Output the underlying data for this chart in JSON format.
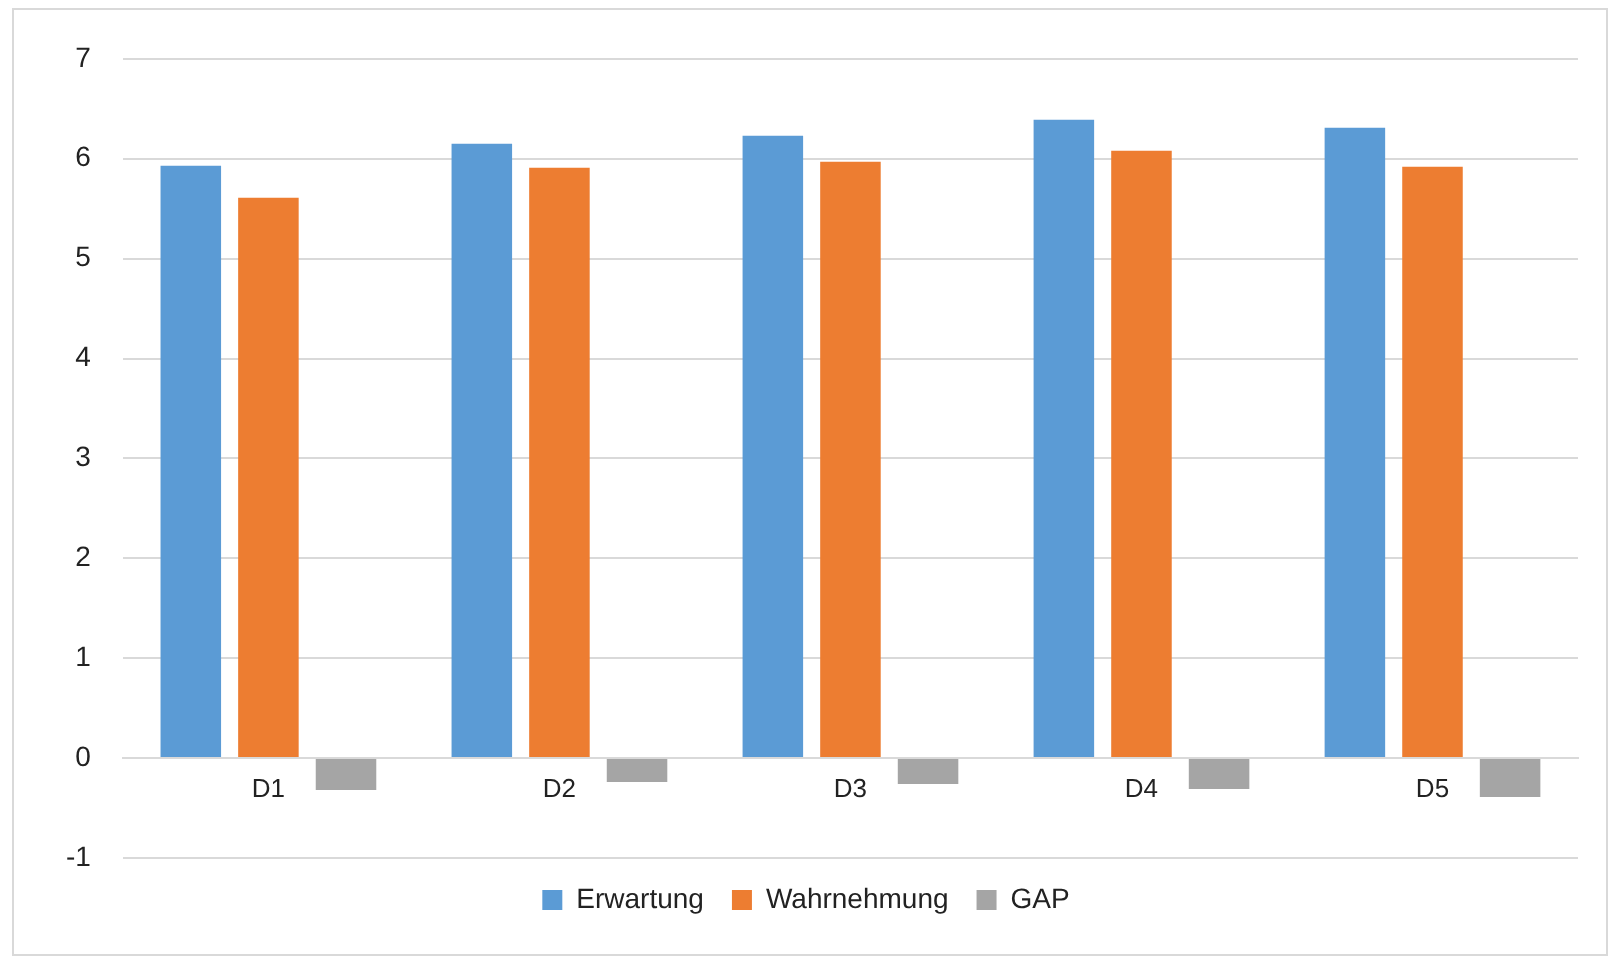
{
  "chart_data": {
    "type": "bar",
    "categories": [
      "D1",
      "D2",
      "D3",
      "D4",
      "D5"
    ],
    "series": [
      {
        "name": "Erwartung",
        "color": "#5b9bd5",
        "values": [
          5.93,
          6.15,
          6.23,
          6.39,
          6.31
        ]
      },
      {
        "name": "Wahrnehmung",
        "color": "#ed7d31",
        "values": [
          5.61,
          5.91,
          5.97,
          6.08,
          5.92
        ]
      },
      {
        "name": "GAP",
        "color": "#a5a5a5",
        "values": [
          -0.32,
          -0.24,
          -0.26,
          -0.31,
          -0.39
        ]
      }
    ],
    "ylim": [
      -1,
      7
    ],
    "yticks": [
      -1,
      0,
      1,
      2,
      3,
      4,
      5,
      6,
      7
    ],
    "grid": "y",
    "legend": "bottom"
  }
}
